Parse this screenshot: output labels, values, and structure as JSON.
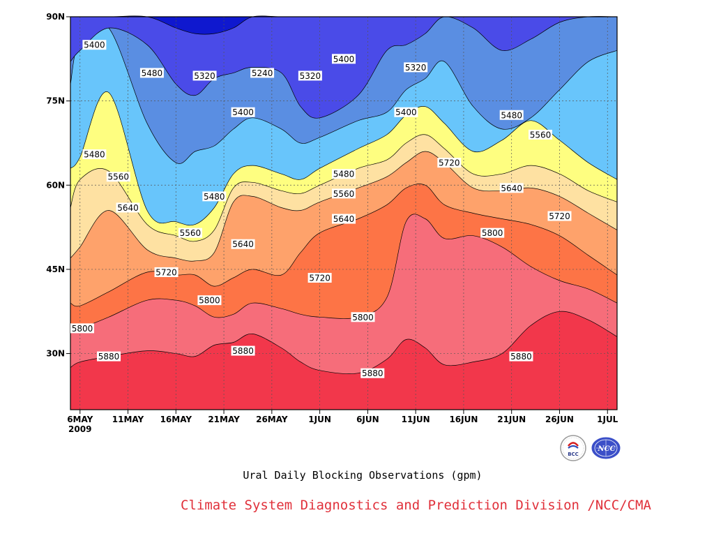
{
  "chart_data": {
    "type": "heatmap",
    "xlabel": "",
    "ylabel": "",
    "x_ticks": [
      "6MAY",
      "11MAY",
      "16MAY",
      "21MAY",
      "26MAY",
      "1JUN",
      "6JUN",
      "11JUN",
      "16JUN",
      "21JUN",
      "26JUN",
      "1JUL"
    ],
    "x_year": "2009",
    "y_ticks": [
      "30N",
      "45N",
      "60N",
      "75N",
      "90N"
    ],
    "y_values": [
      30,
      45,
      60,
      75,
      90
    ],
    "ylim": [
      20,
      90
    ],
    "x_day_range": [
      1,
      58
    ],
    "grid": true,
    "levels": [
      5240,
      5320,
      5400,
      5480,
      5560,
      5640,
      5720,
      5800,
      5880
    ],
    "level_colors": [
      "#0f18cf",
      "#4a4be8",
      "#5a8ee2",
      "#68c5fb",
      "#fefe80",
      "#fee1a2",
      "#fea26b",
      "#fd7446",
      "#f66d7a",
      "#f2374b"
    ],
    "bands_top_latitude": {
      "days": [
        1,
        2,
        5,
        9,
        12,
        14,
        16,
        18,
        20,
        23,
        25,
        27,
        31,
        34,
        36,
        38,
        40,
        43,
        46,
        49,
        52,
        55,
        58
      ],
      "5880": [
        27.5,
        28.5,
        29.5,
        30.5,
        30,
        29.5,
        31.5,
        32,
        33.5,
        31,
        28.5,
        27,
        26.5,
        29,
        32.5,
        31,
        28,
        28.5,
        30,
        35,
        37.5,
        36,
        33
      ],
      "5800": [
        34.5,
        34.5,
        36.5,
        39.5,
        39.5,
        38.5,
        36.5,
        37,
        39,
        38,
        37,
        36.5,
        36.5,
        40,
        53.5,
        54,
        50.5,
        51,
        49,
        45.5,
        43,
        41.5,
        39
      ],
      "5720": [
        39,
        38.5,
        41,
        44.5,
        44,
        44,
        42,
        43.5,
        45,
        44,
        48,
        51.5,
        54,
        56.5,
        59.5,
        60,
        56.5,
        55,
        54,
        53,
        51,
        47.5,
        44
      ],
      "5640": [
        47,
        49,
        55.5,
        48.5,
        47,
        46.5,
        48,
        57,
        58,
        56,
        55.5,
        57,
        59.5,
        61.5,
        64,
        66,
        64,
        59.5,
        59,
        59.5,
        58,
        55,
        52
      ],
      "5560": [
        56,
        61,
        62.5,
        53,
        51,
        50,
        52,
        59.5,
        60.5,
        59,
        58.5,
        60,
        63,
        64.5,
        67.5,
        69,
        66.5,
        62,
        62,
        63.5,
        62,
        59,
        57
      ],
      "5480": [
        63,
        65,
        76.5,
        55.5,
        53.5,
        53,
        56,
        62,
        63.5,
        62,
        61,
        63,
        66.5,
        69,
        72.5,
        74,
        71,
        66,
        68,
        71.5,
        68,
        64,
        61
      ],
      "5400": [
        78,
        86,
        88,
        71,
        64,
        66,
        67,
        70,
        72,
        70,
        67.5,
        68.5,
        71.5,
        73,
        77,
        79,
        82,
        74,
        70,
        72,
        77,
        82,
        84
      ],
      "5320": [
        82,
        84,
        88,
        85,
        78,
        76,
        79,
        80,
        81,
        80,
        74,
        72,
        76,
        84,
        85,
        87,
        90,
        88,
        84,
        86,
        89,
        90,
        90
      ],
      "5240": [
        90,
        90,
        90,
        90,
        88,
        87,
        87,
        88,
        90,
        90,
        90,
        90,
        90,
        90,
        90,
        90,
        90,
        90,
        90,
        90,
        90,
        90,
        90
      ]
    },
    "contour_labels": [
      {
        "text": "5400",
        "day": 3.5,
        "lat": 85
      },
      {
        "text": "5480",
        "day": 9.5,
        "lat": 80
      },
      {
        "text": "5320",
        "day": 15,
        "lat": 79.5
      },
      {
        "text": "5240",
        "day": 21,
        "lat": 80
      },
      {
        "text": "5320",
        "day": 26,
        "lat": 79.5
      },
      {
        "text": "5400",
        "day": 29.5,
        "lat": 82.5
      },
      {
        "text": "5320",
        "day": 37,
        "lat": 81
      },
      {
        "text": "5400",
        "day": 19,
        "lat": 73
      },
      {
        "text": "5400",
        "day": 36,
        "lat": 73
      },
      {
        "text": "5480",
        "day": 47,
        "lat": 72.5
      },
      {
        "text": "5560",
        "day": 50,
        "lat": 69
      },
      {
        "text": "5480",
        "day": 3.5,
        "lat": 65.5
      },
      {
        "text": "5560",
        "day": 6,
        "lat": 61.5
      },
      {
        "text": "5480",
        "day": 29.5,
        "lat": 62
      },
      {
        "text": "5720",
        "day": 40.5,
        "lat": 64
      },
      {
        "text": "5480",
        "day": 16,
        "lat": 58
      },
      {
        "text": "5560",
        "day": 29.5,
        "lat": 58.5
      },
      {
        "text": "5640",
        "day": 47,
        "lat": 59.5
      },
      {
        "text": "5640",
        "day": 7,
        "lat": 56
      },
      {
        "text": "5640",
        "day": 29.5,
        "lat": 54
      },
      {
        "text": "5720",
        "day": 52,
        "lat": 54.5
      },
      {
        "text": "5560",
        "day": 13.5,
        "lat": 51.5
      },
      {
        "text": "5640",
        "day": 19,
        "lat": 49.5
      },
      {
        "text": "5800",
        "day": 45,
        "lat": 51.5
      },
      {
        "text": "5720",
        "day": 11,
        "lat": 44.5
      },
      {
        "text": "5720",
        "day": 27,
        "lat": 43.5
      },
      {
        "text": "5800",
        "day": 15.5,
        "lat": 39.5
      },
      {
        "text": "5800",
        "day": 1,
        "lat": 34.5
      },
      {
        "text": "5800",
        "day": 31.5,
        "lat": 36.5
      },
      {
        "text": "5880",
        "day": 5,
        "lat": 29.5
      },
      {
        "text": "5880",
        "day": 19,
        "lat": 30.5
      },
      {
        "text": "5880",
        "day": 32.5,
        "lat": 26.5
      },
      {
        "text": "5880",
        "day": 48,
        "lat": 29.5
      }
    ]
  },
  "caption": "Ural Daily Blocking Observations (gpm)",
  "credit": "Climate System Diagnostics and Prediction Division /NCC/CMA",
  "logos": {
    "left": "BCC",
    "right": "NCC"
  }
}
